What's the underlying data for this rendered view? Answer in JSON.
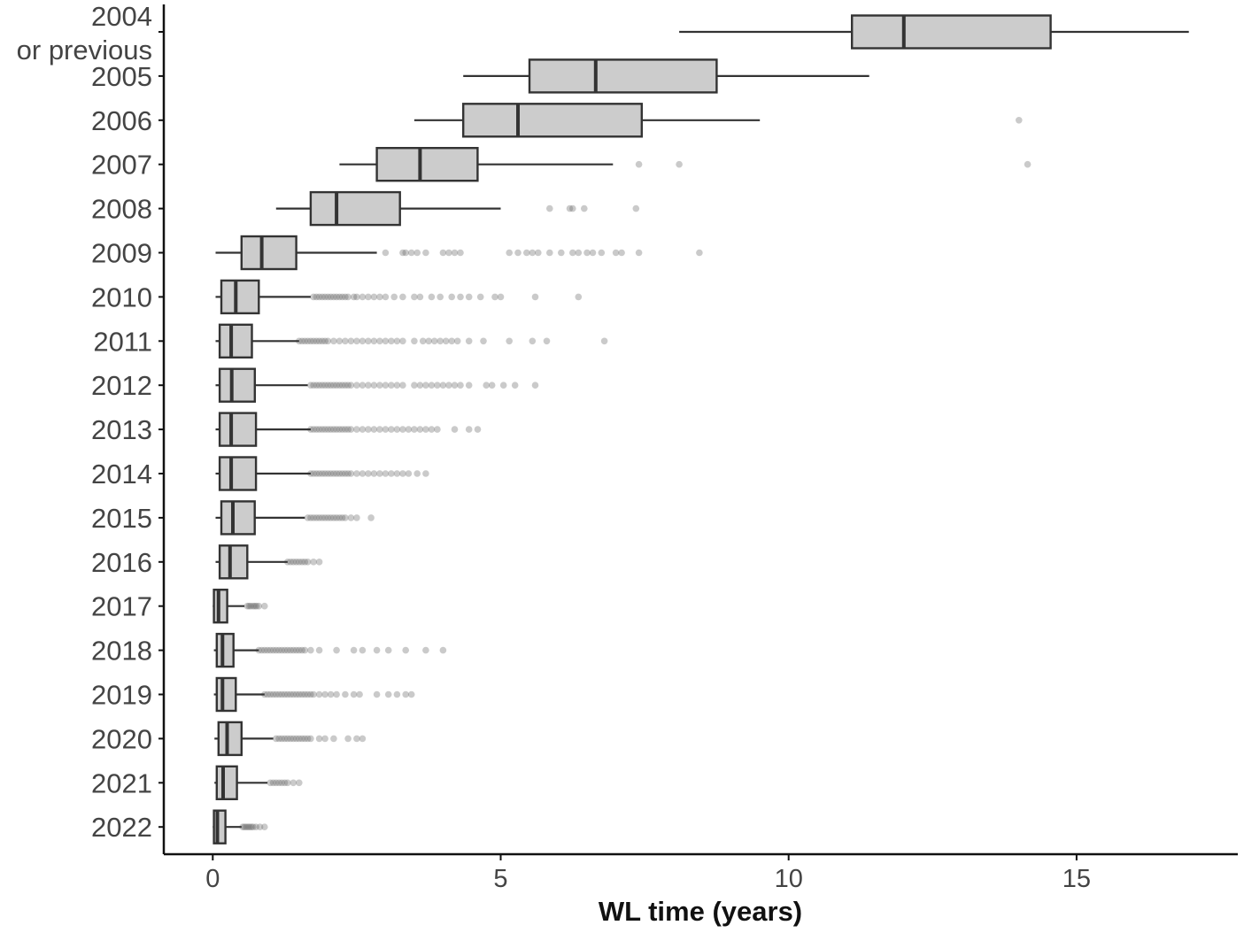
{
  "chart_data": {
    "type": "boxplot",
    "title": "",
    "xlabel": "WL time (years)",
    "ylabel": "",
    "xlim": [
      -0.85,
      17.8
    ],
    "x_ticks": [
      0,
      5,
      10,
      15
    ],
    "x_tick_labels": [
      "0",
      "5",
      "10",
      "15"
    ],
    "grid": false,
    "categories": [
      "2004",
      "2005",
      "2006",
      "2007",
      "2008",
      "2009",
      "2010",
      "2011",
      "2012",
      "2013",
      "2014",
      "2015",
      "2016",
      "2017",
      "2018",
      "2019",
      "2020",
      "2021",
      "2022"
    ],
    "category_labels": [
      [
        "2004",
        "or previous"
      ],
      [
        "2005"
      ],
      [
        "2006"
      ],
      [
        "2007"
      ],
      [
        "2008"
      ],
      [
        "2009"
      ],
      [
        "2010"
      ],
      [
        "2011"
      ],
      [
        "2012"
      ],
      [
        "2013"
      ],
      [
        "2014"
      ],
      [
        "2015"
      ],
      [
        "2016"
      ],
      [
        "2017"
      ],
      [
        "2018"
      ],
      [
        "2019"
      ],
      [
        "2020"
      ],
      [
        "2021"
      ],
      [
        "2022"
      ]
    ],
    "box_fill": "#cccccc",
    "box_stroke": "#333333",
    "outlier_color": "#666666",
    "boxes": [
      {
        "q1": 11.1,
        "median": 12.0,
        "q3": 14.55,
        "whisker_low": 8.1,
        "whisker_high": 16.95,
        "outliers": []
      },
      {
        "q1": 5.5,
        "median": 6.65,
        "q3": 8.75,
        "whisker_low": 4.35,
        "whisker_high": 11.4,
        "outliers": []
      },
      {
        "q1": 4.35,
        "median": 5.3,
        "q3": 7.45,
        "whisker_low": 3.5,
        "whisker_high": 9.5,
        "outliers": [
          14.0
        ]
      },
      {
        "q1": 2.85,
        "median": 3.6,
        "q3": 4.6,
        "whisker_low": 2.2,
        "whisker_high": 6.95,
        "outliers": [
          7.4,
          8.1,
          14.15
        ]
      },
      {
        "q1": 1.7,
        "median": 2.15,
        "q3": 3.25,
        "whisker_low": 1.1,
        "whisker_high": 5.0,
        "outliers": [
          5.85,
          6.2,
          6.25,
          6.45,
          7.35
        ]
      },
      {
        "q1": 0.5,
        "median": 0.85,
        "q3": 1.45,
        "whisker_low": 0.05,
        "whisker_high": 2.85,
        "outliers": [
          3.0,
          3.3,
          3.35,
          3.45,
          3.55,
          3.7,
          4.0,
          4.1,
          4.2,
          4.3,
          5.15,
          5.3,
          5.45,
          5.55,
          5.65,
          5.85,
          6.05,
          6.25,
          6.35,
          6.5,
          6.6,
          6.75,
          7.0,
          7.1,
          7.4,
          8.45
        ]
      },
      {
        "q1": 0.15,
        "median": 0.4,
        "q3": 0.8,
        "whisker_low": 0.05,
        "whisker_high": 1.7,
        "outliers": [
          1.75,
          1.8,
          1.85,
          1.9,
          1.95,
          2.0,
          2.05,
          2.1,
          2.15,
          2.2,
          2.25,
          2.3,
          2.35,
          2.45,
          2.5,
          2.6,
          2.7,
          2.8,
          2.9,
          3.0,
          3.15,
          3.3,
          3.5,
          3.6,
          3.8,
          3.95,
          4.15,
          4.3,
          4.45,
          4.65,
          4.9,
          5.0,
          5.6,
          6.35
        ]
      },
      {
        "q1": 0.12,
        "median": 0.32,
        "q3": 0.68,
        "whisker_low": 0.05,
        "whisker_high": 1.5,
        "outliers": [
          1.5,
          1.55,
          1.6,
          1.65,
          1.7,
          1.75,
          1.8,
          1.85,
          1.9,
          1.95,
          2.0,
          2.1,
          2.2,
          2.3,
          2.4,
          2.5,
          2.6,
          2.7,
          2.8,
          2.9,
          3.0,
          3.1,
          3.2,
          3.3,
          3.5,
          3.65,
          3.75,
          3.85,
          3.95,
          4.05,
          4.15,
          4.25,
          4.45,
          4.7,
          5.15,
          5.55,
          5.8,
          6.8
        ]
      },
      {
        "q1": 0.12,
        "median": 0.33,
        "q3": 0.73,
        "whisker_low": 0.05,
        "whisker_high": 1.65,
        "outliers": [
          1.7,
          1.75,
          1.8,
          1.85,
          1.9,
          1.95,
          2.0,
          2.05,
          2.1,
          2.15,
          2.2,
          2.25,
          2.3,
          2.35,
          2.4,
          2.5,
          2.6,
          2.7,
          2.8,
          2.9,
          3.0,
          3.1,
          3.2,
          3.3,
          3.5,
          3.6,
          3.7,
          3.8,
          3.9,
          4.0,
          4.1,
          4.2,
          4.3,
          4.45,
          4.75,
          4.85,
          5.05,
          5.25,
          5.6
        ]
      },
      {
        "q1": 0.12,
        "median": 0.32,
        "q3": 0.75,
        "whisker_low": 0.05,
        "whisker_high": 1.7,
        "outliers": [
          1.7,
          1.75,
          1.8,
          1.85,
          1.9,
          1.95,
          2.0,
          2.05,
          2.1,
          2.15,
          2.2,
          2.25,
          2.3,
          2.35,
          2.4,
          2.5,
          2.6,
          2.7,
          2.8,
          2.9,
          3.0,
          3.1,
          3.2,
          3.3,
          3.4,
          3.5,
          3.6,
          3.7,
          3.8,
          3.9,
          4.2,
          4.45,
          4.6
        ]
      },
      {
        "q1": 0.12,
        "median": 0.32,
        "q3": 0.75,
        "whisker_low": 0.05,
        "whisker_high": 1.7,
        "outliers": [
          1.7,
          1.75,
          1.8,
          1.85,
          1.9,
          1.95,
          2.0,
          2.05,
          2.1,
          2.15,
          2.2,
          2.25,
          2.3,
          2.35,
          2.4,
          2.5,
          2.6,
          2.7,
          2.8,
          2.9,
          3.0,
          3.1,
          3.2,
          3.3,
          3.4,
          3.55,
          3.7
        ]
      },
      {
        "q1": 0.15,
        "median": 0.35,
        "q3": 0.73,
        "whisker_low": 0.05,
        "whisker_high": 1.6,
        "outliers": [
          1.65,
          1.7,
          1.75,
          1.8,
          1.85,
          1.9,
          1.95,
          2.0,
          2.05,
          2.1,
          2.15,
          2.2,
          2.25,
          2.3,
          2.4,
          2.5,
          2.75
        ]
      },
      {
        "q1": 0.12,
        "median": 0.3,
        "q3": 0.6,
        "whisker_low": 0.05,
        "whisker_high": 1.3,
        "outliers": [
          1.3,
          1.35,
          1.4,
          1.45,
          1.5,
          1.55,
          1.6,
          1.65,
          1.75,
          1.85
        ]
      },
      {
        "q1": 0.02,
        "median": 0.1,
        "q3": 0.25,
        "whisker_low": 0.0,
        "whisker_high": 0.55,
        "outliers": [
          0.6,
          0.63,
          0.66,
          0.7,
          0.73,
          0.76,
          0.8,
          0.9
        ]
      },
      {
        "q1": 0.07,
        "median": 0.17,
        "q3": 0.36,
        "whisker_low": 0.02,
        "whisker_high": 0.8,
        "outliers": [
          0.8,
          0.85,
          0.9,
          0.95,
          1.0,
          1.05,
          1.1,
          1.15,
          1.2,
          1.25,
          1.3,
          1.35,
          1.4,
          1.45,
          1.5,
          1.55,
          1.6,
          1.7,
          1.85,
          2.15,
          2.45,
          2.6,
          2.85,
          3.05,
          3.35,
          3.7,
          4.0
        ]
      },
      {
        "q1": 0.07,
        "median": 0.17,
        "q3": 0.4,
        "whisker_low": 0.02,
        "whisker_high": 0.9,
        "outliers": [
          0.9,
          0.95,
          1.0,
          1.05,
          1.1,
          1.15,
          1.2,
          1.25,
          1.3,
          1.35,
          1.4,
          1.45,
          1.5,
          1.55,
          1.6,
          1.65,
          1.7,
          1.75,
          1.85,
          1.95,
          2.05,
          2.15,
          2.3,
          2.45,
          2.55,
          2.85,
          3.05,
          3.2,
          3.35,
          3.45
        ]
      },
      {
        "q1": 0.1,
        "median": 0.25,
        "q3": 0.5,
        "whisker_low": 0.03,
        "whisker_high": 1.05,
        "outliers": [
          1.1,
          1.15,
          1.2,
          1.25,
          1.3,
          1.35,
          1.4,
          1.45,
          1.5,
          1.55,
          1.6,
          1.65,
          1.7,
          1.85,
          1.95,
          2.1,
          2.35,
          2.5,
          2.6
        ]
      },
      {
        "q1": 0.07,
        "median": 0.18,
        "q3": 0.42,
        "whisker_low": 0.03,
        "whisker_high": 0.95,
        "outliers": [
          1.0,
          1.05,
          1.1,
          1.15,
          1.2,
          1.25,
          1.3,
          1.4,
          1.5
        ]
      },
      {
        "q1": 0.02,
        "median": 0.08,
        "q3": 0.22,
        "whisker_low": 0.0,
        "whisker_high": 0.5,
        "outliers": [
          0.52,
          0.55,
          0.58,
          0.61,
          0.64,
          0.67,
          0.7,
          0.75,
          0.82,
          0.9
        ]
      }
    ]
  }
}
